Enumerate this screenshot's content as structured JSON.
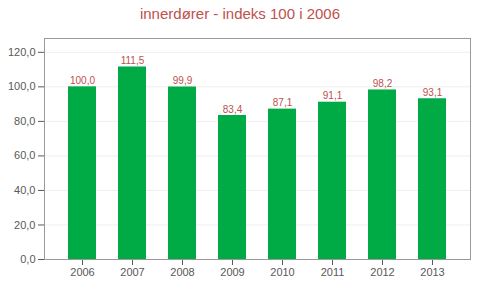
{
  "chart_data": {
    "type": "bar",
    "title": "innerdører - indeks 100 i 2006",
    "categories": [
      "2006",
      "2007",
      "2008",
      "2009",
      "2010",
      "2011",
      "2012",
      "2013"
    ],
    "values": [
      100.0,
      111.5,
      99.9,
      83.4,
      87.1,
      91.1,
      98.2,
      93.1
    ],
    "value_labels": [
      "100,0",
      "111,5",
      "99,9",
      "83,4",
      "87,1",
      "91,1",
      "98,2",
      "93,1"
    ],
    "color": "#00AA44",
    "ylim": [
      0,
      128
    ],
    "yticks": [
      {
        "value": 0,
        "label": "0,0"
      },
      {
        "value": 20,
        "label": "20,0"
      },
      {
        "value": 40,
        "label": "40,0"
      },
      {
        "value": 60,
        "label": "60,0"
      },
      {
        "value": 80,
        "label": "80,0"
      },
      {
        "value": 100,
        "label": "100,0"
      },
      {
        "value": 120,
        "label": "120,0"
      }
    ],
    "grid": true,
    "data_labels": true
  }
}
